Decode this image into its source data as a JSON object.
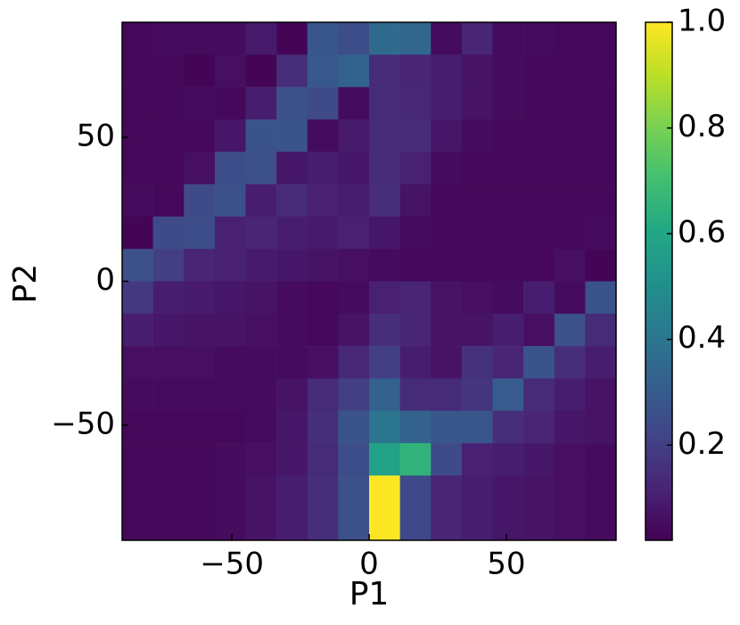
{
  "chart_data": {
    "type": "heatmap",
    "xlabel": "P1",
    "ylabel": "P2",
    "xbins": [
      -90,
      -78.75,
      -67.5,
      -56.25,
      -45,
      -33.75,
      -22.5,
      -11.25,
      0,
      11.25,
      22.5,
      33.75,
      45,
      56.25,
      67.5,
      78.75,
      90
    ],
    "ybins": [
      90,
      78.75,
      67.5,
      56.25,
      45,
      33.75,
      22.5,
      11.25,
      0,
      -11.25,
      -22.5,
      -33.75,
      -45,
      -56.25,
      -67.5,
      -90
    ],
    "values": [
      [
        0.04,
        0.05,
        0.05,
        0.05,
        0.09,
        0.03,
        0.28,
        0.25,
        0.36,
        0.34,
        0.05,
        0.12,
        0.05,
        0.05,
        0.04,
        0.04
      ],
      [
        0.04,
        0.04,
        0.03,
        0.06,
        0.03,
        0.15,
        0.29,
        0.33,
        0.14,
        0.12,
        0.1,
        0.07,
        0.05,
        0.04,
        0.04,
        0.04
      ],
      [
        0.04,
        0.04,
        0.05,
        0.04,
        0.1,
        0.26,
        0.24,
        0.05,
        0.14,
        0.13,
        0.1,
        0.07,
        0.05,
        0.04,
        0.04,
        0.04
      ],
      [
        0.04,
        0.04,
        0.04,
        0.08,
        0.27,
        0.27,
        0.05,
        0.09,
        0.14,
        0.14,
        0.08,
        0.05,
        0.04,
        0.04,
        0.04,
        0.04
      ],
      [
        0.04,
        0.04,
        0.06,
        0.25,
        0.26,
        0.08,
        0.1,
        0.08,
        0.14,
        0.11,
        0.05,
        0.04,
        0.04,
        0.04,
        0.04,
        0.04
      ],
      [
        0.05,
        0.04,
        0.24,
        0.26,
        0.1,
        0.14,
        0.11,
        0.1,
        0.15,
        0.07,
        0.04,
        0.04,
        0.04,
        0.04,
        0.04,
        0.04
      ],
      [
        0.03,
        0.24,
        0.25,
        0.11,
        0.12,
        0.1,
        0.09,
        0.11,
        0.08,
        0.05,
        0.04,
        0.04,
        0.04,
        0.04,
        0.04,
        0.05
      ],
      [
        0.26,
        0.2,
        0.12,
        0.11,
        0.09,
        0.08,
        0.07,
        0.06,
        0.05,
        0.04,
        0.04,
        0.04,
        0.04,
        0.04,
        0.06,
        0.03
      ],
      [
        0.18,
        0.1,
        0.09,
        0.08,
        0.07,
        0.05,
        0.04,
        0.05,
        0.11,
        0.12,
        0.07,
        0.06,
        0.05,
        0.1,
        0.05,
        0.27
      ],
      [
        0.1,
        0.08,
        0.07,
        0.07,
        0.06,
        0.05,
        0.04,
        0.07,
        0.15,
        0.12,
        0.07,
        0.07,
        0.1,
        0.06,
        0.26,
        0.14
      ],
      [
        0.06,
        0.06,
        0.06,
        0.05,
        0.05,
        0.05,
        0.06,
        0.13,
        0.2,
        0.1,
        0.07,
        0.16,
        0.12,
        0.27,
        0.15,
        0.1
      ],
      [
        0.05,
        0.05,
        0.05,
        0.05,
        0.05,
        0.07,
        0.14,
        0.2,
        0.32,
        0.14,
        0.14,
        0.17,
        0.3,
        0.14,
        0.1,
        0.07
      ],
      [
        0.04,
        0.04,
        0.04,
        0.04,
        0.05,
        0.08,
        0.15,
        0.27,
        0.4,
        0.33,
        0.28,
        0.28,
        0.15,
        0.12,
        0.08,
        0.07
      ],
      [
        0.04,
        0.04,
        0.04,
        0.05,
        0.06,
        0.08,
        0.14,
        0.25,
        0.58,
        0.65,
        0.24,
        0.11,
        0.1,
        0.08,
        0.06,
        0.05
      ],
      [
        0.04,
        0.04,
        0.04,
        0.05,
        0.07,
        0.1,
        0.15,
        0.26,
        1.0,
        0.23,
        0.12,
        0.1,
        0.08,
        0.07,
        0.06,
        0.05
      ]
    ],
    "xlim": [
      -90,
      90
    ],
    "ylim": [
      -90,
      90
    ],
    "xticks": [
      {
        "value": -50,
        "label": "−50"
      },
      0,
      50
    ],
    "yticks": [
      {
        "value": -50,
        "label": "−50"
      },
      0,
      50
    ],
    "colormap": "viridis",
    "clim": [
      0.02,
      1
    ],
    "cticks": [
      0.2,
      0.4,
      0.6,
      0.8,
      {
        "value": 1,
        "label": "1.0"
      }
    ]
  }
}
